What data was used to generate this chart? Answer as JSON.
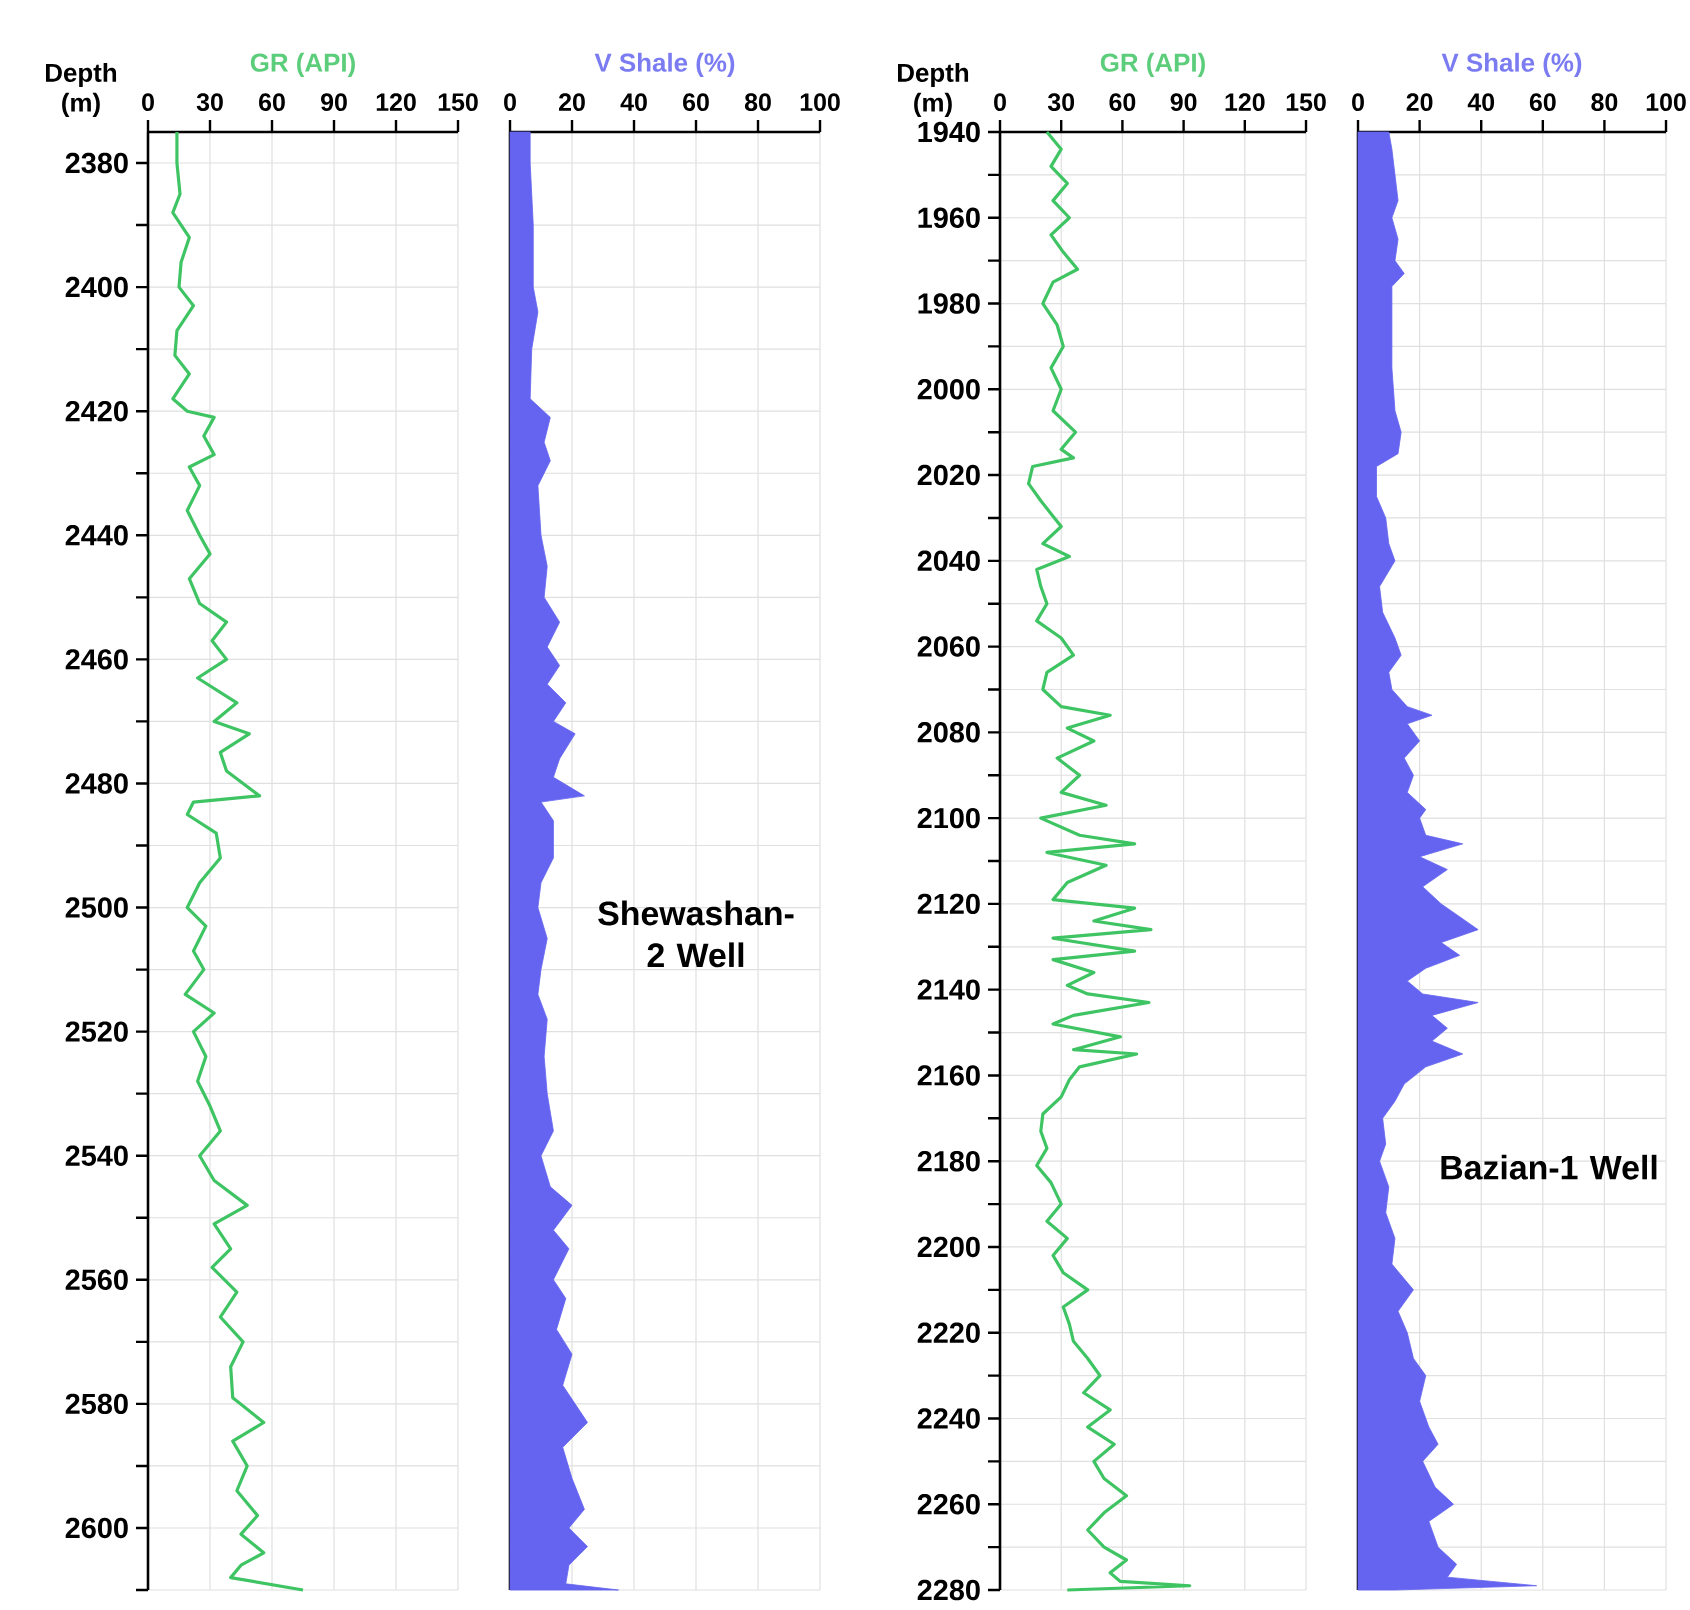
{
  "chart_data": [
    {
      "type": "line",
      "xlabel": "GR (API)",
      "ylabel": "Depth (m)",
      "xlim": [
        0,
        150
      ],
      "xticks": [
        0,
        30,
        60,
        90,
        120,
        150
      ],
      "ylim": [
        2610,
        2375
      ],
      "grid": true,
      "yticks": [
        2380,
        {
          "value": 2390,
          "label": null
        },
        2400,
        {
          "value": 2410,
          "label": null
        },
        2420,
        {
          "value": 2430,
          "label": null
        },
        2440,
        {
          "value": 2450,
          "label": null
        },
        2460,
        {
          "value": 2470,
          "label": null
        },
        2480,
        {
          "value": 2490,
          "label": null
        },
        2500,
        {
          "value": 2510,
          "label": null
        },
        2520,
        {
          "value": 2530,
          "label": null
        },
        2540,
        {
          "value": 2550,
          "label": null
        },
        2560,
        {
          "value": 2570,
          "label": null
        },
        2580,
        {
          "value": 2590,
          "label": null
        },
        2600,
        {
          "value": 2610,
          "label": null
        }
      ],
      "series": [
        {
          "color": "#3fc463",
          "x": [
            14,
            14,
            15.5,
            12,
            20,
            16,
            15,
            22,
            14,
            13,
            20,
            12,
            19,
            32,
            27,
            32,
            20,
            25,
            19,
            25,
            30,
            20,
            25,
            38,
            31,
            38,
            24,
            43,
            32,
            49,
            35,
            38,
            54,
            22,
            19,
            33,
            35,
            25,
            19,
            28,
            22,
            27,
            18,
            32,
            22,
            28,
            24,
            30,
            35,
            25,
            32,
            48,
            32,
            40,
            31,
            43,
            35,
            46,
            40,
            41,
            56,
            41,
            48,
            43,
            53,
            45,
            56,
            45,
            40,
            75
          ],
          "values": [
            2375,
            2380,
            2385,
            2388,
            2392,
            2396,
            2400,
            2403,
            2407,
            2411,
            2414,
            2418,
            2420,
            2421,
            2424,
            2427,
            2429,
            2432,
            2436,
            2440,
            2443,
            2447,
            2451,
            2454,
            2457,
            2460,
            2463,
            2467,
            2470,
            2472,
            2475,
            2478,
            2482,
            2483,
            2485,
            2488,
            2492,
            2496,
            2500,
            2503,
            2507,
            2510,
            2514,
            2517,
            2520,
            2524,
            2528,
            2532,
            2536,
            2540,
            2544,
            2548,
            2551,
            2555,
            2558,
            2562,
            2566,
            2570,
            2574,
            2579,
            2583,
            2586,
            2590,
            2594,
            2598,
            2601,
            2604,
            2606,
            2608,
            2610
          ]
        }
      ]
    },
    {
      "type": "area",
      "orientation": "horizontal",
      "xlabel": "V Shale (%)",
      "xlim": [
        0,
        100
      ],
      "xticks": [
        0,
        20,
        40,
        60,
        80,
        100
      ],
      "ylim": [
        2610,
        2375
      ],
      "grid": true,
      "tick_labels": "x",
      "yticks": [
        2380,
        2390,
        2400,
        2410,
        2420,
        2430,
        2440,
        2450,
        2460,
        2470,
        2480,
        2490,
        2500,
        2510,
        2520,
        2530,
        2540,
        2550,
        2560,
        2570,
        2580,
        2590,
        2600,
        2610
      ],
      "annotations": [
        "Shewashan-2 Well"
      ],
      "series": [
        {
          "color": "#6464f0",
          "values": [
            6.5,
            6.5,
            7.5,
            7.5,
            9,
            7,
            6.5,
            13,
            11,
            13,
            9,
            10,
            12,
            11,
            16,
            12,
            16,
            12,
            18,
            14,
            21,
            16,
            14,
            24,
            10,
            14,
            14,
            10,
            9,
            12,
            10,
            9,
            12,
            11,
            12,
            14,
            10,
            13,
            20,
            14,
            19,
            14,
            18,
            15,
            20,
            17,
            25,
            17,
            20,
            24,
            19,
            25,
            19,
            18,
            35
          ],
          "x": [
            2375,
            2380,
            2390,
            2400,
            2404,
            2410,
            2418,
            2421,
            2425,
            2428,
            2432,
            2440,
            2445,
            2450,
            2454,
            2458,
            2461,
            2464,
            2467,
            2470,
            2472,
            2476,
            2479,
            2482,
            2483,
            2486,
            2492,
            2496,
            2500,
            2505,
            2510,
            2514,
            2518,
            2524,
            2530,
            2536,
            2540,
            2545,
            2548,
            2552,
            2555,
            2560,
            2563,
            2568,
            2572,
            2577,
            2583,
            2587,
            2592,
            2597,
            2600,
            2603,
            2606,
            2609,
            2610
          ]
        }
      ]
    },
    {
      "type": "line",
      "xlabel": "GR (API)",
      "ylabel": "Depth (m)",
      "xlim": [
        0,
        150
      ],
      "xticks": [
        0,
        30,
        60,
        90,
        120,
        150
      ],
      "ylim": [
        2280,
        1940
      ],
      "grid": true,
      "yticks": [
        1940,
        {
          "value": 1950,
          "label": null
        },
        1960,
        {
          "value": 1970,
          "label": null
        },
        1980,
        {
          "value": 1990,
          "label": null
        },
        2000,
        {
          "value": 2010,
          "label": null
        },
        2020,
        {
          "value": 2030,
          "label": null
        },
        2040,
        {
          "value": 2050,
          "label": null
        },
        2060,
        {
          "value": 2070,
          "label": null
        },
        2080,
        {
          "value": 2090,
          "label": null
        },
        2100,
        {
          "value": 2110,
          "label": null
        },
        2120,
        {
          "value": 2130,
          "label": null
        },
        2140,
        {
          "value": 2150,
          "label": null
        },
        2160,
        {
          "value": 2170,
          "label": null
        },
        2180,
        {
          "value": 2190,
          "label": null
        },
        2200,
        {
          "value": 2210,
          "label": null
        },
        2220,
        {
          "value": 2230,
          "label": null
        },
        2240,
        {
          "value": 2250,
          "label": null
        },
        2260,
        {
          "value": 2270,
          "label": null
        },
        2280
      ],
      "series": [
        {
          "color": "#3fc463",
          "x": [
            23,
            30,
            25,
            33,
            26,
            34,
            25,
            31,
            38,
            26,
            21,
            28,
            31,
            25,
            30,
            26,
            37,
            30,
            36,
            16,
            14,
            20,
            25,
            30,
            21,
            34,
            18,
            20,
            23,
            18,
            30,
            36,
            23,
            21,
            30,
            54,
            33,
            46,
            28,
            39,
            30,
            52,
            20,
            39,
            66,
            23,
            52,
            33,
            26,
            66,
            46,
            74,
            26,
            66,
            26,
            46,
            33,
            43,
            73,
            36,
            26,
            59,
            36,
            67,
            39,
            34,
            30,
            21,
            20,
            23,
            18,
            25,
            30,
            23,
            33,
            26,
            31,
            43,
            31,
            34,
            36,
            43,
            49,
            41,
            54,
            43,
            56,
            46,
            51,
            62,
            51,
            43,
            51,
            62,
            54,
            59,
            93,
            33
          ],
          "values": [
            1940,
            1944,
            1948,
            1952,
            1956,
            1960,
            1964,
            1968,
            1972,
            1975,
            1980,
            1985,
            1990,
            1995,
            2000,
            2005,
            2010,
            2014,
            2016,
            2018,
            2022,
            2026,
            2029,
            2032,
            2036,
            2039,
            2042,
            2046,
            2050,
            2054,
            2058,
            2062,
            2066,
            2070,
            2074,
            2076,
            2079,
            2082,
            2086,
            2090,
            2094,
            2097,
            2100,
            2104,
            2106,
            2108,
            2111,
            2115,
            2119,
            2121,
            2124,
            2126,
            2128,
            2131,
            2133,
            2136,
            2139,
            2141,
            2143,
            2146,
            2148,
            2151,
            2154,
            2155,
            2158,
            2161,
            2165,
            2169,
            2173,
            2177,
            2181,
            2185,
            2190,
            2194,
            2198,
            2202,
            2206,
            2210,
            2214,
            2218,
            2222,
            2226,
            2230,
            2234,
            2238,
            2242,
            2246,
            2250,
            2254,
            2258,
            2262,
            2266,
            2270,
            2273,
            2276,
            2278,
            2279,
            2280
          ]
        }
      ]
    },
    {
      "type": "area",
      "orientation": "horizontal",
      "xlabel": "V Shale (%)",
      "xlim": [
        0,
        100
      ],
      "xticks": [
        0,
        20,
        40,
        60,
        80,
        100
      ],
      "ylim": [
        2280,
        1940
      ],
      "grid": true,
      "tick_labels": "x",
      "yticks": [
        1940,
        1950,
        1960,
        1970,
        1980,
        1990,
        2000,
        2010,
        2020,
        2030,
        2040,
        2050,
        2060,
        2070,
        2080,
        2090,
        2100,
        2110,
        2120,
        2130,
        2140,
        2150,
        2160,
        2170,
        2180,
        2190,
        2200,
        2210,
        2220,
        2230,
        2240,
        2250,
        2260,
        2270,
        2280
      ],
      "annotations": [
        "Bazian-1 Well"
      ],
      "series": [
        {
          "color": "#6464f0",
          "values": [
            10,
            11,
            12,
            13,
            11,
            13,
            12,
            15,
            11,
            11,
            11,
            12,
            14,
            13,
            6,
            6,
            9,
            10,
            12,
            7,
            8,
            12,
            14,
            10,
            11,
            16,
            24,
            16,
            20,
            15,
            18,
            16,
            22,
            20,
            22,
            34,
            20,
            29,
            21,
            27,
            33,
            39,
            27,
            33,
            22,
            16,
            21,
            39,
            24,
            29,
            24,
            34,
            22,
            15,
            12,
            8,
            9,
            7,
            10,
            9,
            12,
            11,
            18,
            13,
            16,
            18,
            22,
            20,
            23,
            26,
            21,
            25,
            31,
            23,
            26,
            32,
            29,
            58,
            12
          ],
          "x": [
            1940,
            1944,
            1950,
            1956,
            1960,
            1965,
            1970,
            1973,
            1976,
            1985,
            1995,
            2005,
            2010,
            2015,
            2018,
            2025,
            2030,
            2036,
            2040,
            2046,
            2052,
            2058,
            2062,
            2066,
            2070,
            2074,
            2076,
            2078,
            2082,
            2086,
            2090,
            2094,
            2098,
            2100,
            2104,
            2106,
            2109,
            2112,
            2116,
            2120,
            2123,
            2126,
            2129,
            2132,
            2135,
            2138,
            2141,
            2143,
            2146,
            2149,
            2152,
            2155,
            2158,
            2162,
            2166,
            2170,
            2176,
            2180,
            2186,
            2192,
            2198,
            2204,
            2210,
            2215,
            2220,
            2226,
            2230,
            2236,
            2242,
            2246,
            2250,
            2256,
            2260,
            2264,
            2270,
            2274,
            2277,
            2279,
            2280
          ]
        }
      ]
    }
  ]
}
